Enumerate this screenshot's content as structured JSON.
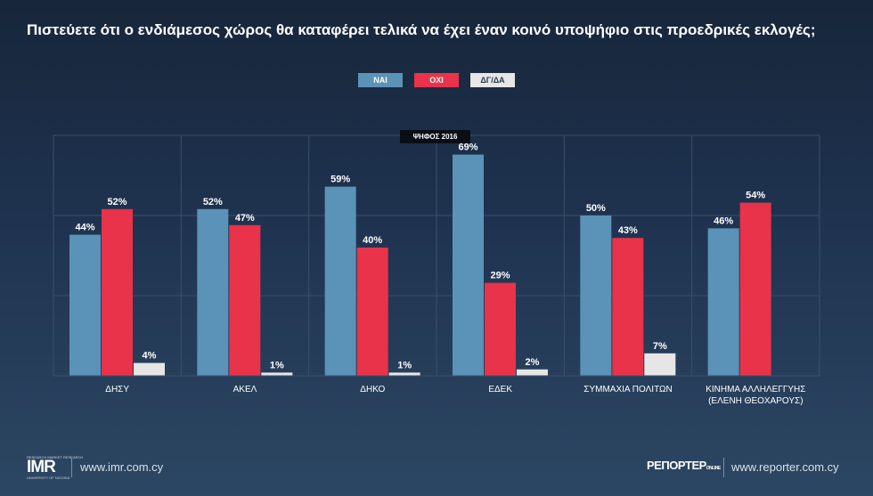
{
  "title": "Πιστεύετε ότι ο ενδιάμεσος χώρος θα καταφέρει τελικά να έχει έναν κοινό υποψήφιο στις προεδρικές εκλογές;",
  "badge": "ΨΗΦΟΣ 2016",
  "colors": {
    "nai": "#5b93b8",
    "oxi": "#e8334a",
    "dgda": "#e6e6e6",
    "grid": "#3a5068",
    "background": "#1f3350"
  },
  "chart_data": {
    "type": "bar",
    "title": "Πιστεύετε ότι ο ενδιάμεσος χώρος θα καταφέρει τελικά να έχει έναν κοινό υποψήφιο στις προεδρικές εκλογές;",
    "categories": [
      "ΔΗΣΥ",
      "ΑΚΕΛ",
      "ΔΗΚΟ",
      "ΕΔΕΚ",
      "ΣΥΜΜΑΧΙΑ ΠΟΛΙΤΩΝ",
      "ΚΙΝΗΜΑ ΑΛΛΗΛΕΓΓΥΗΣ (ΕΛΕΝΗ ΘΕΟΧΑΡΟΥΣ)"
    ],
    "category_lines": [
      [
        "ΔΗΣΥ"
      ],
      [
        "ΑΚΕΛ"
      ],
      [
        "ΔΗΚΟ"
      ],
      [
        "ΕΔΕΚ"
      ],
      [
        "ΣΥΜΜΑΧΙΑ ΠΟΛΙΤΩΝ"
      ],
      [
        "ΚΙΝΗΜΑ ΑΛΛΗΛΕΓΓΥΗΣ",
        "(ΕΛΕΝΗ ΘΕΟΧΑΡΟΥΣ)"
      ]
    ],
    "series": [
      {
        "name": "ΝΑΙ",
        "color": "#5b93b8",
        "values": [
          44,
          52,
          59,
          69,
          50,
          46
        ],
        "labels": [
          "44%",
          "52%",
          "59%",
          "69%",
          "50%",
          "46%"
        ]
      },
      {
        "name": "ΟΧΙ",
        "color": "#e8334a",
        "values": [
          52,
          47,
          40,
          29,
          43,
          54
        ],
        "labels": [
          "52%",
          "47%",
          "40%",
          "29%",
          "43%",
          "54%"
        ]
      },
      {
        "name": "ΔΓ/ΔΑ",
        "color": "#e6e6e6",
        "values": [
          4,
          1,
          1,
          2,
          7,
          null
        ],
        "labels": [
          "4%",
          "1%",
          "1%",
          "2%",
          "7%",
          null
        ]
      }
    ],
    "ylim": [
      0,
      75
    ],
    "grid": true,
    "legend_position": "top-center"
  },
  "footer": {
    "left_logo_top": "RESEARCH MARKET RESEARCH",
    "left_logo_mark": "IMR",
    "left_logo_bottom": "UNIVERSITY OF NICOSIA",
    "left_url": "www.imr.com.cy",
    "right_logo": "ΡΕΠΟΡΤΕΡ",
    "right_logo_sub": "ONLINE",
    "right_url": "www.reporter.com.cy"
  }
}
